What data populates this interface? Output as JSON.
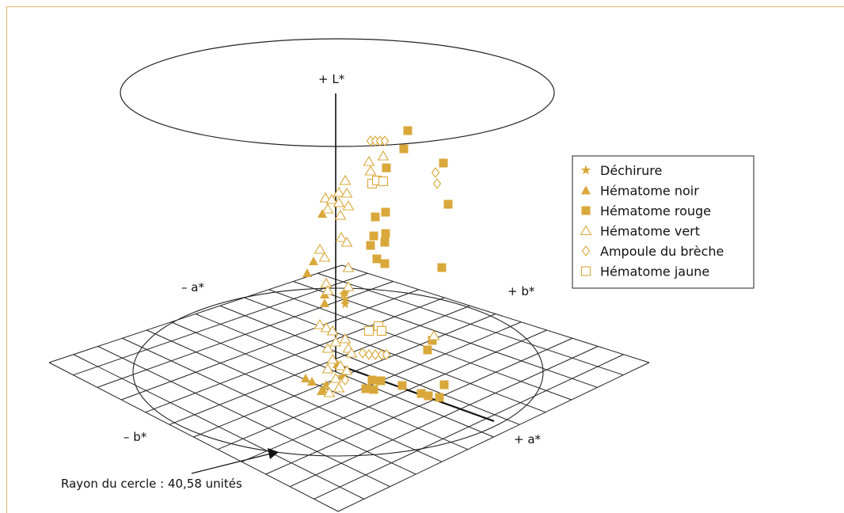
{
  "chart_data": {
    "type": "scatter",
    "axes": {
      "l_plus": "+ L*",
      "a_minus": "– a*",
      "a_plus": "+ a*",
      "b_minus": "– b*",
      "b_plus": "+ b*"
    },
    "annotation": "Rayon du cercle : 40,58 unités",
    "colors": {
      "marker": "#d9a83a",
      "frame": "#e8b870",
      "ink": "#222222"
    },
    "series": [
      {
        "name": "Déchirure",
        "marker": "star-icon",
        "points": [
          [
            434,
            372
          ],
          [
            436,
            378
          ],
          [
            436,
            384
          ],
          [
            436,
            370
          ],
          [
            432,
            476
          ],
          [
            409,
            492
          ],
          [
            412,
            486
          ]
        ]
      },
      {
        "name": "Hématome noir",
        "marker": "triangle-filled-icon",
        "points": [
          [
            407,
            270
          ],
          [
            396,
            330
          ],
          [
            388,
            345
          ],
          [
            410,
            372
          ],
          [
            410,
            383
          ],
          [
            386,
            478
          ],
          [
            394,
            482
          ],
          [
            406,
            494
          ],
          [
            426,
            460
          ]
        ]
      },
      {
        "name": "Hématome rouge",
        "marker": "square-filled-icon",
        "points": [
          [
            515,
            165
          ],
          [
            510,
            188
          ],
          [
            560,
            206
          ],
          [
            488,
            212
          ],
          [
            566,
            258
          ],
          [
            487,
            268
          ],
          [
            474,
            274
          ],
          [
            487,
            295
          ],
          [
            472,
            298
          ],
          [
            486,
            306
          ],
          [
            468,
            310
          ],
          [
            476,
            327
          ],
          [
            486,
            333
          ],
          [
            558,
            338
          ],
          [
            546,
            430
          ],
          [
            540,
            442
          ],
          [
            470,
            480
          ],
          [
            481,
            481
          ],
          [
            462,
            491
          ],
          [
            508,
            487
          ],
          [
            532,
            497
          ],
          [
            541,
            500
          ],
          [
            555,
            502
          ],
          [
            561,
            486
          ],
          [
            472,
            492
          ]
        ]
      },
      {
        "name": "Hématome vert",
        "marker": "triangle-open-icon",
        "points": [
          [
            484,
            197
          ],
          [
            466,
            204
          ],
          [
            468,
            216
          ],
          [
            436,
            228
          ],
          [
            428,
            243
          ],
          [
            411,
            250
          ],
          [
            419,
            252
          ],
          [
            438,
            244
          ],
          [
            428,
            256
          ],
          [
            440,
            260
          ],
          [
            414,
            264
          ],
          [
            430,
            272
          ],
          [
            431,
            300
          ],
          [
            438,
            306
          ],
          [
            404,
            315
          ],
          [
            410,
            325
          ],
          [
            440,
            338
          ],
          [
            412,
            358
          ],
          [
            414,
            367
          ],
          [
            440,
            362
          ],
          [
            404,
            410
          ],
          [
            412,
            414
          ],
          [
            420,
            418
          ],
          [
            436,
            428
          ],
          [
            424,
            432
          ],
          [
            414,
            440
          ],
          [
            440,
            440
          ],
          [
            444,
            446
          ],
          [
            420,
            454
          ],
          [
            430,
            462
          ],
          [
            438,
            468
          ],
          [
            414,
            466
          ],
          [
            424,
            478
          ],
          [
            428,
            490
          ],
          [
            416,
            496
          ],
          [
            548,
            424
          ]
        ]
      },
      {
        "name": "Ampoule du brèche",
        "marker": "diamond-open-icon",
        "points": [
          [
            468,
            178
          ],
          [
            474,
            178
          ],
          [
            480,
            178
          ],
          [
            486,
            178
          ],
          [
            550,
            218
          ],
          [
            552,
            232
          ],
          [
            458,
            446
          ],
          [
            466,
            448
          ],
          [
            474,
            448
          ],
          [
            482,
            448
          ],
          [
            488,
            448
          ],
          [
            436,
            480
          ]
        ]
      },
      {
        "name": "Hématome jaune",
        "marker": "square-open-icon",
        "points": [
          [
            470,
            232
          ],
          [
            476,
            228
          ],
          [
            484,
            229
          ],
          [
            466,
            418
          ],
          [
            478,
            412
          ],
          [
            482,
            418
          ]
        ]
      }
    ]
  }
}
